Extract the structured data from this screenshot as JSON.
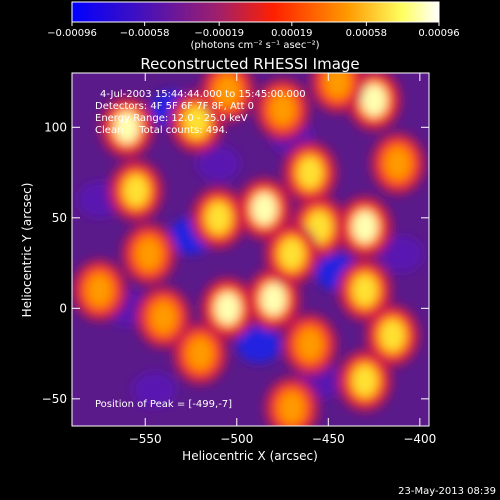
{
  "chart_data": {
    "type": "heatmap",
    "title": "Reconstructed RHESSI Image",
    "xlabel": "Heliocentric X (arcsec)",
    "ylabel": "Heliocentric Y (arcsec)",
    "xlim": [
      -590,
      -395
    ],
    "ylim": [
      -65,
      130
    ],
    "x_ticks": [
      -550,
      -500,
      -450,
      -400
    ],
    "y_ticks": [
      -50,
      0,
      50,
      100
    ],
    "x_tick_labels": [
      "−550",
      "−500",
      "−450",
      "−400"
    ],
    "y_tick_labels": [
      "−50",
      "0",
      "50",
      "100"
    ],
    "colorbar": {
      "range": [
        -0.00096,
        0.00096
      ],
      "ticks": [
        -0.00096,
        -0.00058,
        -0.00019,
        0.00019,
        0.00058,
        0.00096
      ],
      "tick_labels": [
        "−0.00096",
        "−0.00058",
        "−0.00019",
        "0.00019",
        "0.00058",
        "0.00096"
      ],
      "unit_label": "(photons cm⁻² s⁻¹ asec⁻²)",
      "colormap": [
        "#0000ff",
        "#6a0dad",
        "#b0205f",
        "#ff3300",
        "#ff9900",
        "#ffff66",
        "#ffffff"
      ]
    },
    "annotations": [
      "4-Jul-2003 15:44:44.000 to 15:45:00.000",
      "Detectors: 4F 5F 6F 7F 8F, Att 0",
      "Energy Range: 12.0 - 25.0 keV",
      "Clean     Total counts: 494."
    ],
    "peak_label": "Position of Peak = [-499,-7]",
    "peak": [
      -499,
      -7
    ],
    "bright_sources": [
      {
        "x": -560,
        "y": 100,
        "value": 0.00096
      },
      {
        "x": -555,
        "y": 65,
        "value": 0.0008
      },
      {
        "x": -522,
        "y": 103,
        "value": 0.0008
      },
      {
        "x": -548,
        "y": 30,
        "value": 0.0006
      },
      {
        "x": -510,
        "y": 50,
        "value": 0.0007
      },
      {
        "x": -485,
        "y": 55,
        "value": 0.00096
      },
      {
        "x": -460,
        "y": 75,
        "value": 0.0008
      },
      {
        "x": -455,
        "y": 45,
        "value": 0.0007
      },
      {
        "x": -425,
        "y": 115,
        "value": 0.00096
      },
      {
        "x": -412,
        "y": 80,
        "value": 0.0006
      },
      {
        "x": -430,
        "y": 45,
        "value": 0.0009
      },
      {
        "x": -430,
        "y": 10,
        "value": 0.0007
      },
      {
        "x": -505,
        "y": 0,
        "value": 0.0009
      },
      {
        "x": -480,
        "y": 5,
        "value": 0.0009
      },
      {
        "x": -470,
        "y": 30,
        "value": 0.0007
      },
      {
        "x": -460,
        "y": -20,
        "value": 0.0006
      },
      {
        "x": -540,
        "y": -5,
        "value": 0.0005
      },
      {
        "x": -520,
        "y": -25,
        "value": 0.0005
      },
      {
        "x": -415,
        "y": -15,
        "value": 0.0008
      },
      {
        "x": -430,
        "y": -40,
        "value": 0.0007
      },
      {
        "x": -470,
        "y": -55,
        "value": 0.0005
      },
      {
        "x": -575,
        "y": 10,
        "value": 0.0004
      },
      {
        "x": -505,
        "y": 120,
        "value": 0.0005
      },
      {
        "x": -475,
        "y": 110,
        "value": 0.0005
      },
      {
        "x": -445,
        "y": 125,
        "value": 0.0006
      }
    ],
    "dark_sources": [
      {
        "x": -525,
        "y": 40,
        "value": -0.0008
      },
      {
        "x": -445,
        "y": 20,
        "value": -0.0008
      },
      {
        "x": -535,
        "y": 110,
        "value": -0.0006
      },
      {
        "x": -470,
        "y": 95,
        "value": -0.0005
      },
      {
        "x": -560,
        "y": 0,
        "value": -0.0004
      },
      {
        "x": -488,
        "y": -20,
        "value": -0.0006
      },
      {
        "x": -510,
        "y": 80,
        "value": -0.0005
      },
      {
        "x": -410,
        "y": 30,
        "value": -0.0005
      },
      {
        "x": -575,
        "y": 60,
        "value": -0.0004
      },
      {
        "x": -455,
        "y": -40,
        "value": -0.0004
      },
      {
        "x": -545,
        "y": -45,
        "value": -0.0005
      }
    ]
  },
  "footer": {
    "timestamp": "23-May-2013 08:39"
  }
}
